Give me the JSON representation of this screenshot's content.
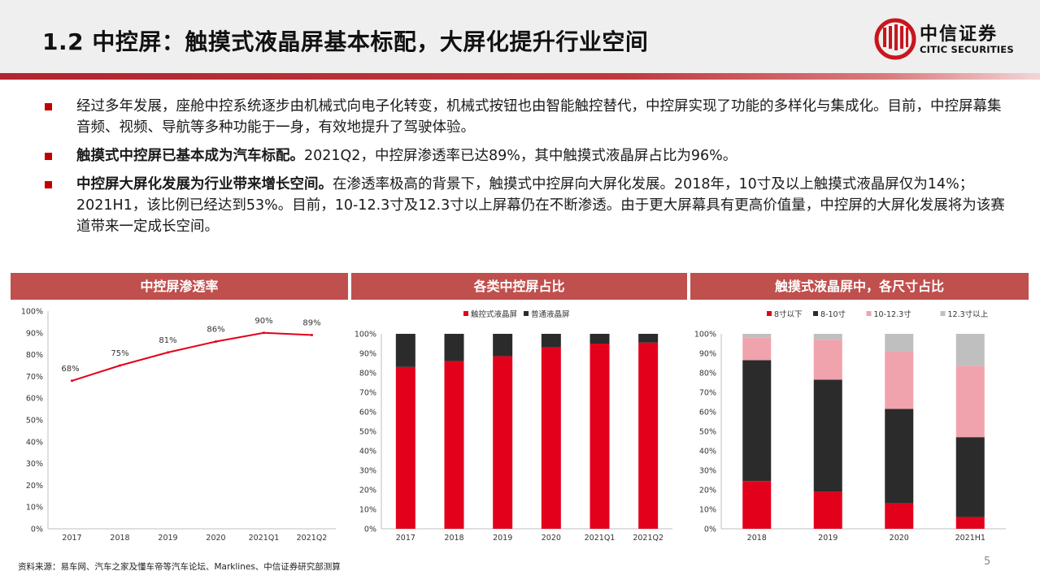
{
  "header": {
    "title": "1.2 中控屏：触摸式液晶屏基本标配，大屏化提升行业空间",
    "logo_cn": "中信证券",
    "logo_en": "CITIC SECURITIES"
  },
  "bullets": [
    {
      "bold": "",
      "text": "经过多年发展，座舱中控系统逐步由机械式向电子化转变，机械式按钮也由智能触控替代，中控屏实现了功能的多样化与集成化。目前，中控屏幕集音频、视频、导航等多种功能于一身，有效地提升了驾驶体验。"
    },
    {
      "bold": "触摸式中控屏已基本成为汽车标配。",
      "text": "2021Q2，中控屏渗透率已达89%，其中触摸式液晶屏占比为96%。"
    },
    {
      "bold": "中控屏大屏化发展为行业带来增长空间。",
      "text": "在渗透率极高的背景下，触摸式中控屏向大屏化发展。2018年，10寸及以上触摸式液晶屏仅为14%；2021H1，该比例已经达到53%。目前，10-12.3寸及12.3寸以上屏幕仍在不断渗透。由于更大屏幕具有更高价值量，中控屏的大屏化发展将为该赛道带来一定成长空间。"
    }
  ],
  "colors": {
    "accent": "#c00000",
    "panel_header": "#c0504d",
    "bar_red": "#e3001b",
    "bar_dark": "#2b2b2b",
    "bar_pink": "#f0a3ac",
    "bar_gray": "#bfbfbf"
  },
  "chart_data": [
    {
      "type": "line",
      "title": "中控屏渗透率",
      "categories": [
        "2017",
        "2018",
        "2019",
        "2020",
        "2021Q1",
        "2021Q2"
      ],
      "values": [
        68,
        75,
        81,
        86,
        90,
        89
      ],
      "data_labels": [
        "68%",
        "75%",
        "81%",
        "86%",
        "90%",
        "89%"
      ],
      "ylim": [
        0,
        100
      ],
      "yticks": [
        "0%",
        "10%",
        "20%",
        "30%",
        "40%",
        "50%",
        "60%",
        "70%",
        "80%",
        "90%",
        "100%"
      ],
      "grid": false,
      "legend": "none"
    },
    {
      "type": "bar",
      "stacked": true,
      "title": "各类中控屏占比",
      "categories": [
        "2017",
        "2018",
        "2019",
        "2020",
        "2021Q1",
        "2021Q2"
      ],
      "series": [
        {
          "name": "触控式液晶屏",
          "values": [
            83,
            86,
            88.5,
            93,
            95,
            95.5
          ]
        },
        {
          "name": "普通液晶屏",
          "values": [
            17,
            14,
            11.5,
            7,
            5,
            4.5
          ]
        }
      ],
      "ylim": [
        0,
        100
      ],
      "yticks": [
        "0%",
        "10%",
        "20%",
        "30%",
        "40%",
        "50%",
        "60%",
        "70%",
        "80%",
        "90%",
        "100%"
      ],
      "legend": "top"
    },
    {
      "type": "bar",
      "stacked": true,
      "title": "触摸式液晶屏中，各尺寸占比",
      "categories": [
        "2018",
        "2019",
        "2020",
        "2021H1"
      ],
      "series": [
        {
          "name": "8寸以下",
          "values": [
            24.5,
            19,
            13,
            6
          ]
        },
        {
          "name": "8-10寸",
          "values": [
            62,
            57.5,
            48.5,
            41
          ]
        },
        {
          "name": "10-12.3寸",
          "values": [
            11.5,
            20.5,
            29.5,
            36.5
          ]
        },
        {
          "name": "12.3寸以上",
          "values": [
            2,
            3,
            9,
            16.5
          ]
        }
      ],
      "ylim": [
        0,
        100
      ],
      "yticks": [
        "0%",
        "10%",
        "20%",
        "30%",
        "40%",
        "50%",
        "60%",
        "70%",
        "80%",
        "90%",
        "100%"
      ],
      "legend": "top"
    }
  ],
  "footer": {
    "source": "资料来源：易车网、汽车之家及懂车帝等汽车论坛、Marklines、中信证券研究部测算",
    "page": "5"
  }
}
